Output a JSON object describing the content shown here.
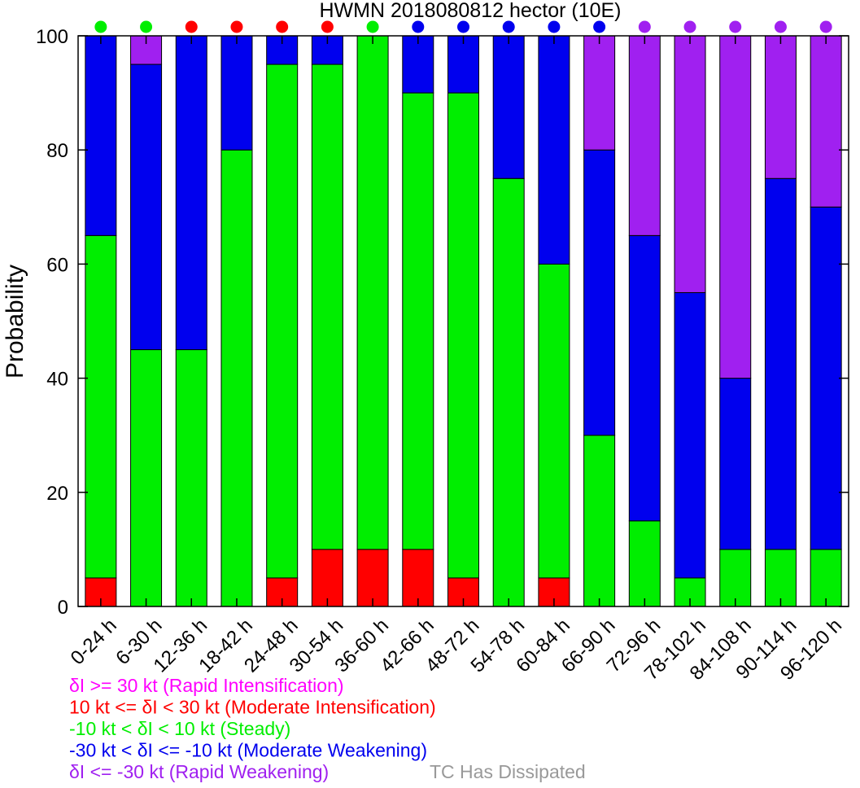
{
  "chart_data": {
    "type": "bar",
    "stacked": true,
    "title": "HWMN 2018080812 hector (10E)",
    "ylabel": "Probability",
    "xlabel": "",
    "ylim": [
      0,
      100
    ],
    "yticks": [
      "0",
      "20",
      "40",
      "60",
      "80",
      "100"
    ],
    "categories": [
      "0-24 h",
      "6-30 h",
      "12-36 h",
      "18-42 h",
      "24-48 h",
      "30-54 h",
      "36-60 h",
      "42-66 h",
      "48-72 h",
      "54-78 h",
      "60-84 h",
      "66-90 h",
      "72-96 h",
      "78-102 h",
      "84-108 h",
      "90-114 h",
      "96-120 h"
    ],
    "series": [
      {
        "name": "Rapid Intensification",
        "color": "#ff00ff",
        "values": [
          0,
          0,
          0,
          0,
          0,
          0,
          0,
          0,
          0,
          0,
          0,
          0,
          0,
          0,
          0,
          0,
          0
        ]
      },
      {
        "name": "Moderate Intensification",
        "color": "#ff0000",
        "values": [
          5,
          0,
          0,
          0,
          5,
          10,
          10,
          10,
          5,
          0,
          5,
          0,
          0,
          0,
          0,
          0,
          0
        ]
      },
      {
        "name": "Steady",
        "color": "#00ee00",
        "values": [
          60,
          45,
          45,
          80,
          90,
          85,
          90,
          80,
          85,
          75,
          55,
          30,
          15,
          5,
          10,
          10,
          10
        ]
      },
      {
        "name": "Moderate Weakening",
        "color": "#0000ee",
        "values": [
          35,
          50,
          55,
          20,
          5,
          5,
          0,
          10,
          10,
          25,
          40,
          50,
          50,
          50,
          30,
          65,
          60
        ]
      },
      {
        "name": "Rapid Weakening",
        "color": "#a020f0",
        "values": [
          0,
          5,
          0,
          0,
          0,
          0,
          0,
          0,
          0,
          0,
          0,
          20,
          35,
          45,
          60,
          25,
          30
        ]
      }
    ],
    "top_markers": [
      "#00ee00",
      "#00ee00",
      "#ff0000",
      "#ff0000",
      "#ff0000",
      "#ff0000",
      "#00ee00",
      "#0000ee",
      "#0000ee",
      "#0000ee",
      "#0000ee",
      "#0000ee",
      "#a020f0",
      "#a020f0",
      "#a020f0",
      "#a020f0",
      "#a020f0"
    ],
    "legend": [
      {
        "text": "δI >= 30 kt (Rapid Intensification)",
        "color": "#ff00ff"
      },
      {
        "text": "10 kt <= δI < 30 kt (Moderate Intensification)",
        "color": "#ff0000"
      },
      {
        "text": "-10 kt < δI < 10 kt (Steady)",
        "color": "#00ee00"
      },
      {
        "text": "-30 kt < δI <= -10 kt (Moderate Weakening)",
        "color": "#0000ee"
      },
      {
        "text": "δI <= -30 kt (Rapid Weakening)",
        "color": "#a020f0"
      }
    ],
    "dissipated_label": {
      "text": "TC Has Dissipated",
      "color": "#999999"
    }
  }
}
